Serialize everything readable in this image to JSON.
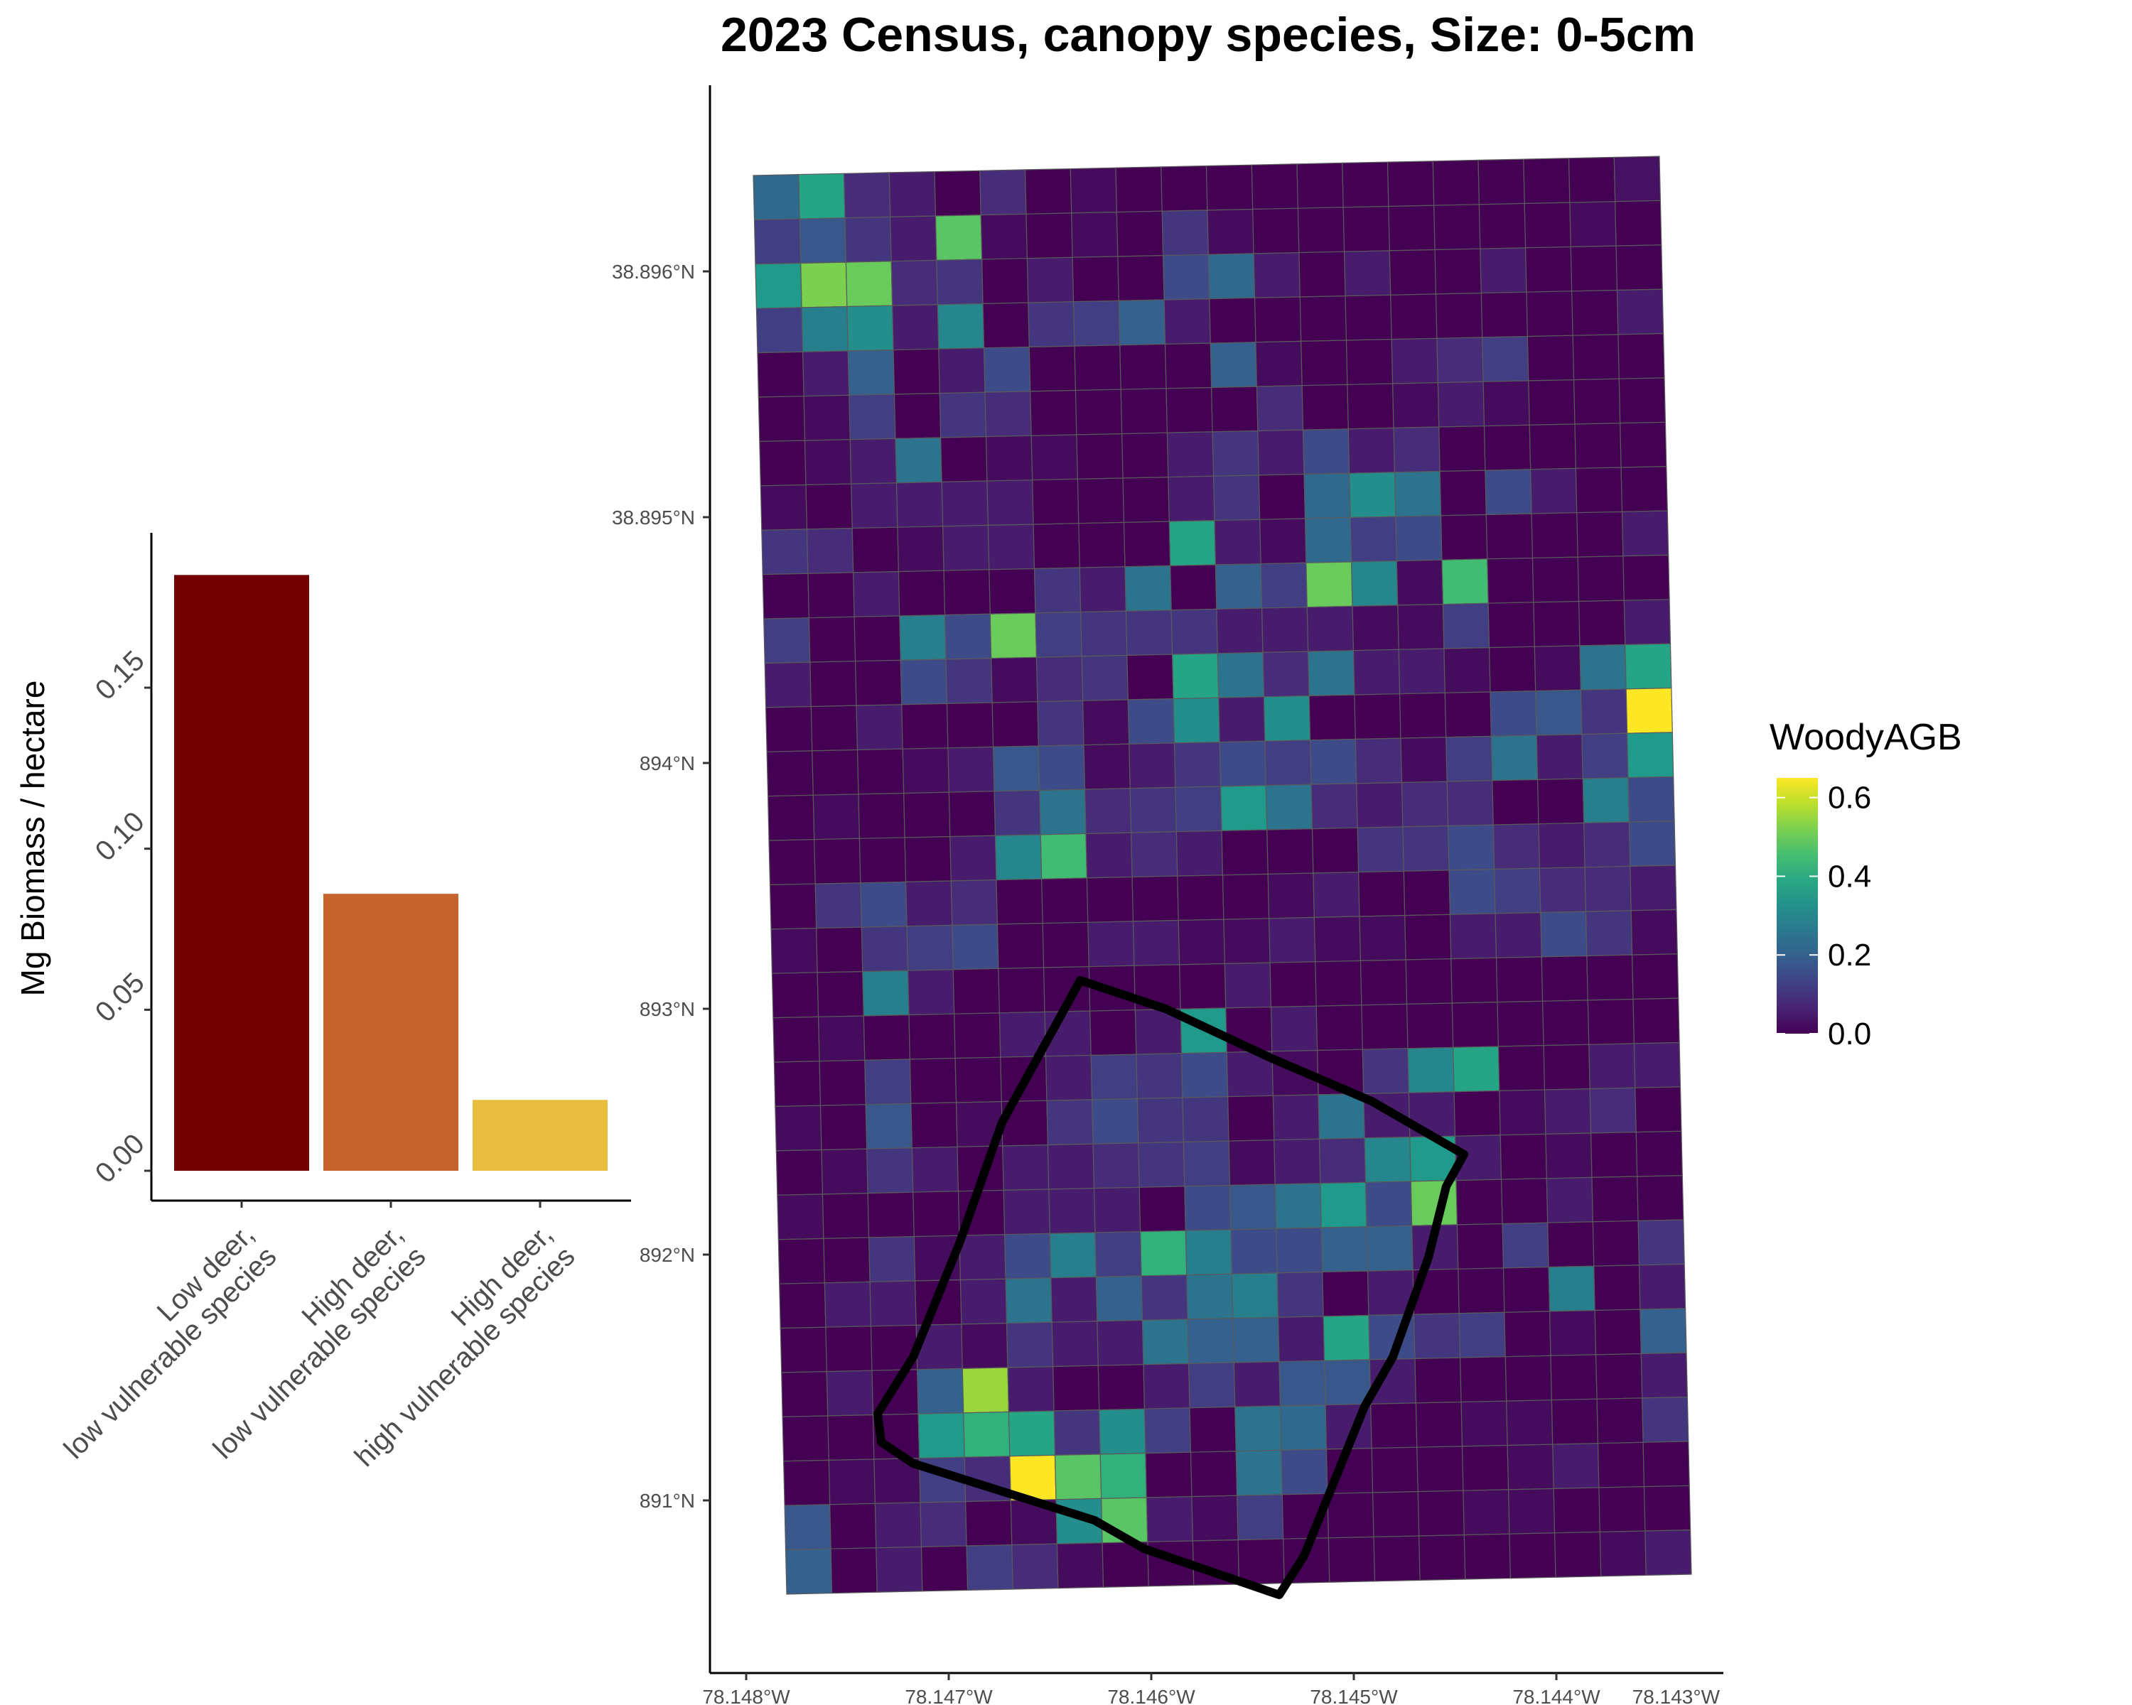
{
  "chart_data": [
    {
      "type": "bar",
      "ylabel": "Mg Biomass / hectare",
      "ylim": [
        0,
        0.19
      ],
      "y_ticks": [
        "0.00",
        "0.05",
        "0.10",
        "0.15"
      ],
      "categories": [
        [
          "Low deer,",
          "low vulnerable species"
        ],
        [
          "High deer,",
          "low vulnerable species"
        ],
        [
          "High deer,",
          "high vulnerable species"
        ]
      ],
      "values": [
        0.185,
        0.086,
        0.022
      ],
      "colors": [
        "#730000",
        "#c6622b",
        "#e8bd40"
      ]
    },
    {
      "type": "heatmap",
      "title": "2023 Census, canopy species, Size: 0-5cm",
      "x_ticks": [
        "78.148°W",
        "78.147°W",
        "78.146°W",
        "78.145°W",
        "78.144°W",
        "78.143°W"
      ],
      "y_ticks": [
        "38.896°N",
        "38.895°N",
        "38.894°N",
        "38.893°N",
        "38.892°N",
        "38.891°N"
      ],
      "legend": {
        "title": "WoodyAGB",
        "labels": [
          "0.6",
          "0.4",
          "0.2",
          "0.0"
        ],
        "range": [
          0,
          0.65
        ],
        "colormap": "viridis"
      },
      "grid": {
        "rows": 32,
        "cols": 20,
        "values": [
          [
            0.22,
            0.38,
            0.08,
            0.05,
            0.0,
            0.08,
            0.0,
            0.02,
            0.0,
            0.0,
            0.0,
            0.0,
            0.0,
            0.0,
            0.0,
            0.0,
            0.0,
            0.0,
            0.0,
            0.03
          ],
          [
            0.12,
            0.18,
            0.1,
            0.05,
            0.48,
            0.02,
            0.0,
            0.02,
            0.0,
            0.1,
            0.02,
            0.0,
            0.0,
            0.0,
            0.0,
            0.0,
            0.0,
            0.0,
            0.02,
            0.0
          ],
          [
            0.35,
            0.52,
            0.5,
            0.08,
            0.1,
            0.0,
            0.05,
            0.0,
            0.0,
            0.15,
            0.22,
            0.05,
            0.0,
            0.05,
            0.0,
            0.0,
            0.05,
            0.0,
            0.0,
            0.0
          ],
          [
            0.12,
            0.28,
            0.32,
            0.05,
            0.3,
            0.0,
            0.1,
            0.12,
            0.2,
            0.05,
            0.0,
            0.0,
            0.0,
            0.0,
            0.0,
            0.0,
            0.0,
            0.0,
            0.0,
            0.05
          ],
          [
            0.0,
            0.05,
            0.2,
            0.0,
            0.05,
            0.15,
            0.0,
            0.0,
            0.0,
            0.0,
            0.2,
            0.02,
            0.0,
            0.0,
            0.05,
            0.08,
            0.12,
            0.0,
            0.0,
            0.0
          ],
          [
            0.0,
            0.02,
            0.12,
            0.0,
            0.1,
            0.08,
            0.0,
            0.0,
            0.0,
            0.0,
            0.0,
            0.08,
            0.0,
            0.0,
            0.02,
            0.05,
            0.02,
            0.0,
            0.0,
            0.0
          ],
          [
            0.0,
            0.02,
            0.05,
            0.25,
            0.0,
            0.02,
            0.02,
            0.0,
            0.0,
            0.05,
            0.1,
            0.05,
            0.15,
            0.05,
            0.08,
            0.0,
            0.0,
            0.0,
            0.0,
            0.0
          ],
          [
            0.02,
            0.0,
            0.05,
            0.05,
            0.05,
            0.05,
            0.0,
            0.0,
            0.0,
            0.05,
            0.1,
            0.0,
            0.22,
            0.32,
            0.25,
            0.0,
            0.15,
            0.05,
            0.0,
            0.0
          ],
          [
            0.1,
            0.08,
            0.0,
            0.02,
            0.05,
            0.05,
            0.0,
            0.0,
            0.0,
            0.38,
            0.05,
            0.02,
            0.22,
            0.12,
            0.15,
            0.0,
            0.0,
            0.0,
            0.0,
            0.05
          ],
          [
            0.0,
            0.0,
            0.05,
            0.0,
            0.0,
            0.0,
            0.1,
            0.05,
            0.25,
            0.0,
            0.2,
            0.12,
            0.5,
            0.3,
            0.02,
            0.45,
            0.0,
            0.0,
            0.0,
            0.0
          ],
          [
            0.12,
            0.0,
            0.0,
            0.28,
            0.15,
            0.5,
            0.12,
            0.1,
            0.1,
            0.1,
            0.05,
            0.05,
            0.05,
            0.02,
            0.02,
            0.12,
            0.0,
            0.0,
            0.0,
            0.05
          ],
          [
            0.05,
            0.0,
            0.0,
            0.15,
            0.1,
            0.02,
            0.08,
            0.1,
            0.0,
            0.38,
            0.25,
            0.08,
            0.25,
            0.05,
            0.05,
            0.02,
            0.0,
            0.02,
            0.25,
            0.38
          ],
          [
            0.0,
            0.0,
            0.05,
            0.0,
            0.0,
            0.0,
            0.1,
            0.02,
            0.15,
            0.32,
            0.05,
            0.32,
            0.0,
            0.0,
            0.0,
            0.0,
            0.15,
            0.18,
            0.1,
            0.65
          ],
          [
            0.0,
            0.0,
            0.0,
            0.02,
            0.05,
            0.18,
            0.15,
            0.02,
            0.05,
            0.1,
            0.15,
            0.12,
            0.15,
            0.08,
            0.02,
            0.12,
            0.25,
            0.05,
            0.12,
            0.35
          ],
          [
            0.0,
            0.02,
            0.0,
            0.0,
            0.0,
            0.1,
            0.25,
            0.08,
            0.1,
            0.12,
            0.35,
            0.25,
            0.08,
            0.05,
            0.08,
            0.08,
            0.0,
            0.0,
            0.28,
            0.15
          ],
          [
            0.0,
            0.0,
            0.0,
            0.0,
            0.05,
            0.3,
            0.45,
            0.05,
            0.08,
            0.05,
            0.0,
            0.0,
            0.0,
            0.1,
            0.1,
            0.15,
            0.08,
            0.05,
            0.08,
            0.15
          ],
          [
            0.0,
            0.1,
            0.15,
            0.05,
            0.08,
            0.0,
            0.0,
            0.0,
            0.0,
            0.0,
            0.0,
            0.02,
            0.05,
            0.0,
            0.0,
            0.15,
            0.12,
            0.08,
            0.08,
            0.05
          ],
          [
            0.02,
            0.0,
            0.1,
            0.12,
            0.15,
            0.0,
            0.0,
            0.05,
            0.05,
            0.02,
            0.02,
            0.05,
            0.02,
            0.02,
            0.0,
            0.05,
            0.05,
            0.15,
            0.1,
            0.02
          ],
          [
            0.0,
            0.0,
            0.28,
            0.05,
            0.0,
            0.0,
            0.0,
            0.0,
            0.0,
            0.0,
            0.05,
            0.0,
            0.0,
            0.0,
            0.0,
            0.0,
            0.0,
            0.0,
            0.0,
            0.0
          ],
          [
            0.0,
            0.02,
            0.0,
            0.0,
            0.0,
            0.05,
            0.05,
            0.0,
            0.05,
            0.35,
            0.0,
            0.05,
            0.0,
            0.0,
            0.0,
            0.0,
            0.0,
            0.0,
            0.0,
            0.0
          ],
          [
            0.0,
            0.0,
            0.12,
            0.0,
            0.0,
            0.0,
            0.05,
            0.12,
            0.1,
            0.15,
            0.05,
            0.02,
            0.0,
            0.1,
            0.3,
            0.38,
            0.0,
            0.0,
            0.05,
            0.05
          ],
          [
            0.02,
            0.0,
            0.18,
            0.0,
            0.02,
            0.0,
            0.1,
            0.15,
            0.1,
            0.1,
            0.0,
            0.05,
            0.25,
            0.05,
            0.05,
            0.0,
            0.02,
            0.05,
            0.08,
            0.0
          ],
          [
            0.0,
            0.02,
            0.1,
            0.05,
            0.0,
            0.05,
            0.05,
            0.08,
            0.1,
            0.12,
            0.02,
            0.05,
            0.08,
            0.3,
            0.35,
            0.05,
            0.0,
            0.02,
            0.0,
            0.0
          ],
          [
            0.02,
            0.0,
            0.0,
            0.0,
            0.0,
            0.05,
            0.05,
            0.05,
            0.0,
            0.15,
            0.18,
            0.25,
            0.35,
            0.15,
            0.5,
            0.0,
            0.0,
            0.05,
            0.0,
            0.0
          ],
          [
            0.0,
            0.0,
            0.1,
            0.02,
            0.05,
            0.15,
            0.28,
            0.12,
            0.42,
            0.28,
            0.15,
            0.15,
            0.2,
            0.2,
            0.05,
            0.0,
            0.12,
            0.0,
            0.0,
            0.1
          ],
          [
            0.0,
            0.05,
            0.05,
            0.0,
            0.05,
            0.25,
            0.05,
            0.2,
            0.1,
            0.25,
            0.28,
            0.1,
            0.0,
            0.05,
            0.0,
            0.0,
            0.0,
            0.28,
            0.0,
            0.05
          ],
          [
            0.0,
            0.0,
            0.0,
            0.05,
            0.02,
            0.1,
            0.05,
            0.05,
            0.25,
            0.2,
            0.2,
            0.05,
            0.38,
            0.15,
            0.1,
            0.12,
            0.0,
            0.02,
            0.0,
            0.2
          ],
          [
            0.0,
            0.05,
            0.0,
            0.2,
            0.55,
            0.05,
            0.0,
            0.0,
            0.05,
            0.12,
            0.05,
            0.18,
            0.18,
            0.05,
            0.0,
            0.0,
            0.0,
            0.0,
            0.0,
            0.05
          ],
          [
            0.0,
            0.0,
            0.0,
            0.35,
            0.42,
            0.38,
            0.1,
            0.32,
            0.12,
            0.0,
            0.25,
            0.22,
            0.05,
            0.0,
            0.0,
            0.02,
            0.02,
            0.0,
            0.0,
            0.1
          ],
          [
            0.0,
            0.02,
            0.02,
            0.12,
            0.08,
            0.65,
            0.48,
            0.42,
            0.0,
            0.0,
            0.25,
            0.15,
            0.0,
            0.0,
            0.0,
            0.0,
            0.02,
            0.05,
            0.0,
            0.0
          ],
          [
            0.18,
            0.0,
            0.05,
            0.08,
            0.0,
            0.02,
            0.32,
            0.48,
            0.05,
            0.02,
            0.12,
            0.0,
            0.0,
            0.0,
            0.0,
            0.02,
            0.02,
            0.0,
            0.0,
            0.0
          ],
          [
            0.2,
            0.0,
            0.05,
            0.0,
            0.12,
            0.08,
            0.02,
            0.0,
            0.0,
            0.0,
            0.0,
            0.0,
            0.0,
            0.0,
            0.0,
            0.0,
            0.0,
            0.0,
            0.02,
            0.05
          ]
        ]
      }
    }
  ]
}
